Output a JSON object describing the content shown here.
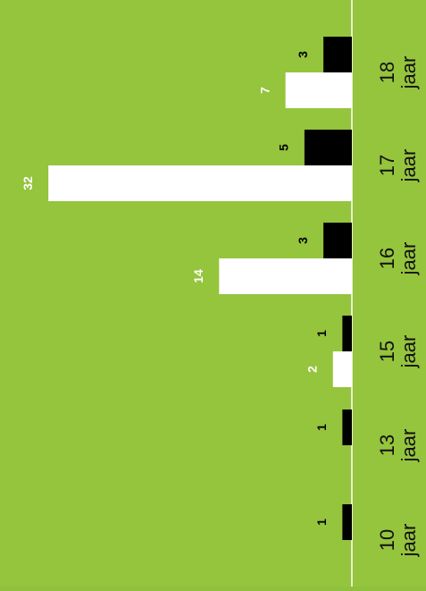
{
  "chart_data": {
    "type": "bar",
    "orientation": "horizontal",
    "categories": [
      "10 jaar",
      "13 jaar",
      "15 jaar",
      "16 jaar",
      "17 jaar",
      "18 jaar"
    ],
    "tick_labels": [
      [
        "10",
        "jaar"
      ],
      [
        "13",
        "jaar"
      ],
      [
        "15",
        "jaar"
      ],
      [
        "16",
        "jaar"
      ],
      [
        "17",
        "jaar"
      ],
      [
        "18",
        "jaar"
      ]
    ],
    "series": [
      {
        "color": "#ffffff",
        "values": [
          0,
          0,
          2,
          14,
          32,
          7
        ]
      },
      {
        "color": "#000000",
        "values": [
          1,
          1,
          1,
          3,
          5,
          3
        ]
      }
    ],
    "data_label_colors": [
      "#ffffff",
      "#000000"
    ],
    "xlim": [
      0,
      32
    ],
    "colors": {
      "background": "#95c43d",
      "axis": "#ffffff",
      "ticks": "#111111"
    },
    "legend": "none",
    "grid": false
  }
}
